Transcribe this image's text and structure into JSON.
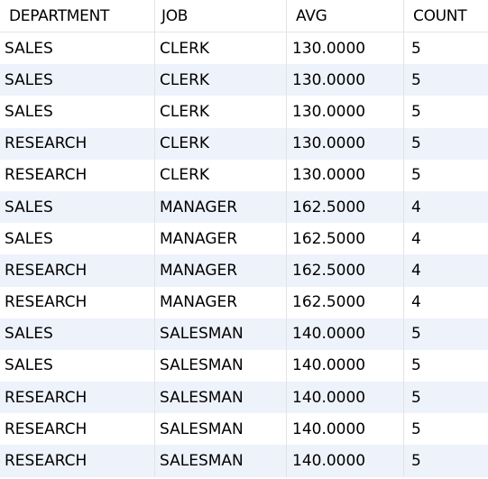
{
  "columns": {
    "department": "DEPARTMENT",
    "job": "JOB",
    "avg": "AVG",
    "count": "COUNT"
  },
  "rows": [
    {
      "department": "SALES",
      "job": "CLERK",
      "avg": "130.0000",
      "count": "5"
    },
    {
      "department": "SALES",
      "job": "CLERK",
      "avg": "130.0000",
      "count": "5"
    },
    {
      "department": "SALES",
      "job": "CLERK",
      "avg": "130.0000",
      "count": "5"
    },
    {
      "department": "RESEARCH",
      "job": "CLERK",
      "avg": "130.0000",
      "count": "5"
    },
    {
      "department": "RESEARCH",
      "job": "CLERK",
      "avg": "130.0000",
      "count": "5"
    },
    {
      "department": "SALES",
      "job": "MANAGER",
      "avg": "162.5000",
      "count": "4"
    },
    {
      "department": "SALES",
      "job": "MANAGER",
      "avg": "162.5000",
      "count": "4"
    },
    {
      "department": "RESEARCH",
      "job": "MANAGER",
      "avg": "162.5000",
      "count": "4"
    },
    {
      "department": "RESEARCH",
      "job": "MANAGER",
      "avg": "162.5000",
      "count": "4"
    },
    {
      "department": "SALES",
      "job": "SALESMAN",
      "avg": "140.0000",
      "count": "5"
    },
    {
      "department": "SALES",
      "job": "SALESMAN",
      "avg": "140.0000",
      "count": "5"
    },
    {
      "department": "RESEARCH",
      "job": "SALESMAN",
      "avg": "140.0000",
      "count": "5"
    },
    {
      "department": "RESEARCH",
      "job": "SALESMAN",
      "avg": "140.0000",
      "count": "5"
    },
    {
      "department": "RESEARCH",
      "job": "SALESMAN",
      "avg": "140.0000",
      "count": "5"
    }
  ],
  "colors": {
    "alt_row": "#eef2fb",
    "row": "#ffffff",
    "grid_line": "#e3e3e3"
  }
}
